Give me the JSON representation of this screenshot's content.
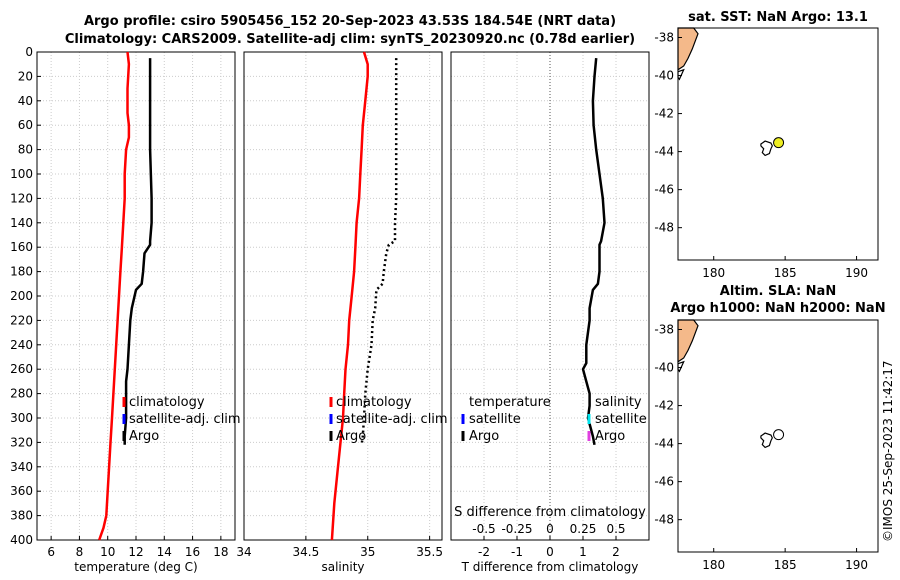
{
  "titles": {
    "line1": "Argo profile: csiro 5905456_152 20-Sep-2023 43.53S 184.54E (NRT data)",
    "line2": "Climatology: CARS2009. Satellite-adj clim: synTS_20230920.nc (0.78d earlier)",
    "map1": "sat. SST: NaN Argo: 13.1",
    "map2a": "Altim. SLA: NaN",
    "map2b": "Argo h1000: NaN h2000: NaN"
  },
  "credit": "©IMOS 25-Sep-2023 11:42:17",
  "colors": {
    "red": "#ff0000",
    "blue": "#0000ff",
    "black": "#000000",
    "cyan": "#00e5ee",
    "magenta": "#e040e0",
    "land": "#f4b98a",
    "float": "#eeee22"
  },
  "chart_data": [
    {
      "type": "line",
      "id": "temperature",
      "xlabel": "temperature (deg C)",
      "ylabel": "",
      "xlim": [
        5,
        19
      ],
      "ylim": [
        0,
        400
      ],
      "xticks": [
        6,
        8,
        10,
        12,
        14,
        16,
        18
      ],
      "yticks": [
        0,
        20,
        40,
        60,
        80,
        100,
        120,
        140,
        160,
        180,
        200,
        220,
        240,
        260,
        280,
        300,
        320,
        340,
        360,
        380,
        400
      ],
      "legend": [
        "climatology",
        "satellite-adj. clim",
        "Argo"
      ],
      "series": [
        {
          "name": "climatology",
          "color": "red",
          "x": [
            11.4,
            11.5,
            11.4,
            11.4,
            11.5,
            11.5,
            11.3,
            11.2,
            11.2,
            11.1,
            11.0,
            10.9,
            10.8,
            10.7,
            10.6,
            10.5,
            10.4,
            10.3,
            10.2,
            10.1,
            10.0,
            9.9,
            9.7,
            9.4
          ],
          "y": [
            0,
            10,
            30,
            50,
            60,
            70,
            80,
            100,
            120,
            140,
            160,
            180,
            200,
            220,
            240,
            260,
            280,
            300,
            320,
            340,
            360,
            380,
            390,
            400
          ]
        },
        {
          "name": "Argo",
          "color": "black",
          "x": [
            13.0,
            13.0,
            13.0,
            13.1,
            13.1,
            13.0,
            13.0,
            12.6,
            12.5,
            12.4,
            12.0,
            11.7,
            11.6,
            11.5,
            11.4,
            11.3,
            11.3,
            11.3,
            11.2,
            11.2
          ],
          "y": [
            5,
            40,
            80,
            120,
            140,
            155,
            158,
            165,
            180,
            190,
            195,
            210,
            220,
            240,
            260,
            270,
            280,
            300,
            315,
            322
          ]
        }
      ]
    },
    {
      "type": "line",
      "id": "salinity",
      "xlabel": "salinity",
      "xlim": [
        34,
        35.6
      ],
      "ylim": [
        0,
        400
      ],
      "xticks": [
        34,
        34.5,
        35,
        35.5
      ],
      "legend": [
        "climatology",
        "satellite-adj. clim",
        "Argo"
      ],
      "series": [
        {
          "name": "climatology",
          "color": "red",
          "x": [
            34.97,
            35.0,
            35.0,
            34.98,
            34.96,
            34.95,
            34.94,
            34.93,
            34.91,
            34.9,
            34.89,
            34.87,
            34.85,
            34.84,
            34.82,
            34.81,
            34.8,
            34.78,
            34.76,
            34.73,
            34.71
          ],
          "y": [
            0,
            10,
            20,
            40,
            60,
            80,
            100,
            120,
            140,
            160,
            180,
            200,
            220,
            240,
            260,
            280,
            300,
            320,
            340,
            370,
            400
          ]
        },
        {
          "name": "Argo",
          "color": "black",
          "style": "dotted",
          "x": [
            35.23,
            35.23,
            35.23,
            35.23,
            35.22,
            35.22,
            35.17,
            35.15,
            35.13,
            35.12,
            35.07,
            35.06,
            35.04,
            35.03,
            35.0,
            34.99,
            34.98,
            34.97,
            34.96,
            34.95
          ],
          "y": [
            5,
            40,
            80,
            120,
            140,
            155,
            158,
            165,
            180,
            190,
            195,
            210,
            220,
            240,
            260,
            270,
            280,
            300,
            315,
            322
          ]
        }
      ]
    },
    {
      "type": "line",
      "id": "difference",
      "xlabel": "T difference from climatology",
      "xlabel2": "S difference from climatology",
      "xlim": [
        -3,
        3
      ],
      "ylim": [
        0,
        400
      ],
      "xticks": [
        -2,
        -1,
        0,
        1,
        2
      ],
      "xtick_labels": [
        "-2",
        "-1",
        "0",
        "1",
        "2"
      ],
      "sticks": [
        -0.5,
        -0.25,
        0,
        0.25,
        0.5
      ],
      "stick_labels": [
        "-0.5",
        "-0.25",
        "0",
        "0.25",
        "0.5"
      ],
      "legend_left": [
        "temperature",
        "satellite",
        "Argo"
      ],
      "legend_right": [
        "salinity",
        "satellite",
        "Argo"
      ],
      "series": [
        {
          "name": "Argo T diff",
          "color": "black",
          "x": [
            1.4,
            1.35,
            1.3,
            1.32,
            1.4,
            1.5,
            1.6,
            1.65,
            1.55,
            1.5,
            1.5,
            1.5,
            1.45,
            1.3,
            1.2,
            1.2,
            1.1,
            1.1,
            1.0,
            1.1,
            1.2,
            1.2,
            1.15,
            1.3,
            1.35
          ],
          "y": [
            5,
            20,
            40,
            60,
            80,
            100,
            120,
            140,
            155,
            158,
            165,
            180,
            190,
            195,
            210,
            220,
            240,
            255,
            260,
            270,
            280,
            290,
            300,
            315,
            322
          ]
        }
      ]
    }
  ],
  "maps": [
    {
      "id": "sst",
      "xlim": [
        177.5,
        191.5
      ],
      "ylim": [
        -49.7,
        -37.5
      ],
      "xticks": [
        180,
        185,
        190
      ],
      "yticks": [
        -38,
        -40,
        -42,
        -44,
        -46,
        -48
      ],
      "ytick_labels": [
        "-38",
        "-40",
        "-42",
        "-44",
        "-46",
        "-48"
      ],
      "float": [
        184.54,
        -43.53
      ],
      "float_fill": true
    },
    {
      "id": "sla",
      "xlim": [
        177.5,
        191.5
      ],
      "ylim": [
        -49.7,
        -37.5
      ],
      "xticks": [
        180,
        185,
        190
      ],
      "yticks": [
        -38,
        -40,
        -42,
        -44,
        -46,
        -48
      ],
      "ytick_labels": [
        "-38",
        "-40",
        "-42",
        "-44",
        "-46",
        "-48"
      ],
      "float": [
        184.54,
        -43.53
      ],
      "float_fill": false
    }
  ]
}
